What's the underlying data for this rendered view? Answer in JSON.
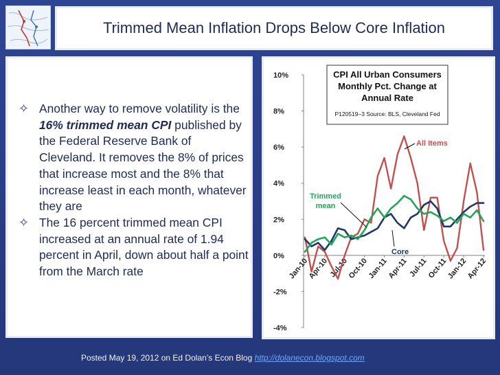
{
  "slide": {
    "title": "Trimmed Mean Inflation Drops Below Core Inflation",
    "bullets": [
      {
        "prefix": "Another way to remove volatility is the ",
        "emphasis": "16% trimmed mean CPI",
        "suffix": " published by the Federal Reserve Bank of Cleveland. It removes the 8% of prices that increase most and the 8% that increase least in each month, whatever they are"
      },
      {
        "prefix": "The 16 percent trimmed mean CPI increased at an annual rate of 1.94 percent in April, down about half a point from the March rate",
        "emphasis": "",
        "suffix": ""
      }
    ],
    "footer_text": "Posted May 19, 2012 on Ed Dolan’s Econ Blog",
    "footer_link": "http://dolanecon.blogspot.com"
  },
  "colors": {
    "background": "#2b3f8c",
    "all_items": "#c0504d",
    "core": "#1f3864",
    "trimmed": "#22a45a"
  },
  "chart_data": {
    "type": "line",
    "title_lines": [
      "CPI All Urban Consumers",
      "Monthly Pct. Change at",
      "Annual Rate"
    ],
    "source": "P120519–3 Source: BLS, Cleveland Fed",
    "ylim": [
      -4,
      10
    ],
    "yticks": [
      "10%",
      "8%",
      "6%",
      "4%",
      "2%",
      "0%",
      "-2%",
      "-4%"
    ],
    "x_tick_labels": [
      "Jan-10",
      "Apr-10",
      "Jul-10",
      "Oct-10",
      "Jan-11",
      "Apr-11",
      "Jul-11",
      "Oct-11",
      "Jan-12",
      "Apr-12"
    ],
    "x_months": [
      "Jan-10",
      "Feb-10",
      "Mar-10",
      "Apr-10",
      "May-10",
      "Jun-10",
      "Jul-10",
      "Aug-10",
      "Sep-10",
      "Oct-10",
      "Nov-10",
      "Dec-10",
      "Jan-11",
      "Feb-11",
      "Mar-11",
      "Apr-11",
      "May-11",
      "Jun-11",
      "Jul-11",
      "Aug-11",
      "Sep-11",
      "Oct-11",
      "Nov-11",
      "Dec-11",
      "Jan-12",
      "Feb-12",
      "Mar-12",
      "Apr-12"
    ],
    "series": [
      {
        "name": "All Items",
        "color": "#c0504d",
        "values": [
          1.0,
          -0.9,
          0.5,
          0.2,
          -0.6,
          -1.3,
          0.0,
          1.0,
          1.2,
          2.0,
          1.8,
          4.4,
          5.4,
          3.7,
          5.6,
          6.6,
          5.4,
          4.0,
          1.4,
          3.2,
          3.2,
          0.8,
          -0.3,
          0.4,
          3.0,
          5.1,
          3.5,
          0.3
        ]
      },
      {
        "name": "Core",
        "color": "#1f3864",
        "values": [
          0.9,
          0.5,
          0.7,
          0.3,
          0.8,
          1.5,
          1.4,
          0.9,
          1.0,
          1.1,
          1.3,
          1.5,
          2.1,
          2.3,
          1.8,
          1.5,
          2.1,
          2.3,
          2.8,
          3.0,
          2.6,
          1.6,
          1.6,
          2.0,
          2.4,
          2.7,
          2.9,
          2.9
        ]
      },
      {
        "name": "Trimmed mean",
        "color": "#22a45a",
        "values": [
          0.2,
          0.7,
          0.9,
          1.0,
          0.6,
          1.2,
          1.0,
          1.1,
          0.9,
          1.4,
          2.1,
          2.6,
          2.1,
          2.6,
          2.9,
          3.3,
          3.1,
          2.6,
          2.3,
          2.4,
          2.2,
          1.9,
          2.1,
          1.8,
          2.3,
          2.1,
          2.5,
          1.9
        ]
      }
    ],
    "annotations": [
      "All Items",
      "Trimmed",
      "mean",
      "Core"
    ],
    "grid": false,
    "legend": "none"
  }
}
